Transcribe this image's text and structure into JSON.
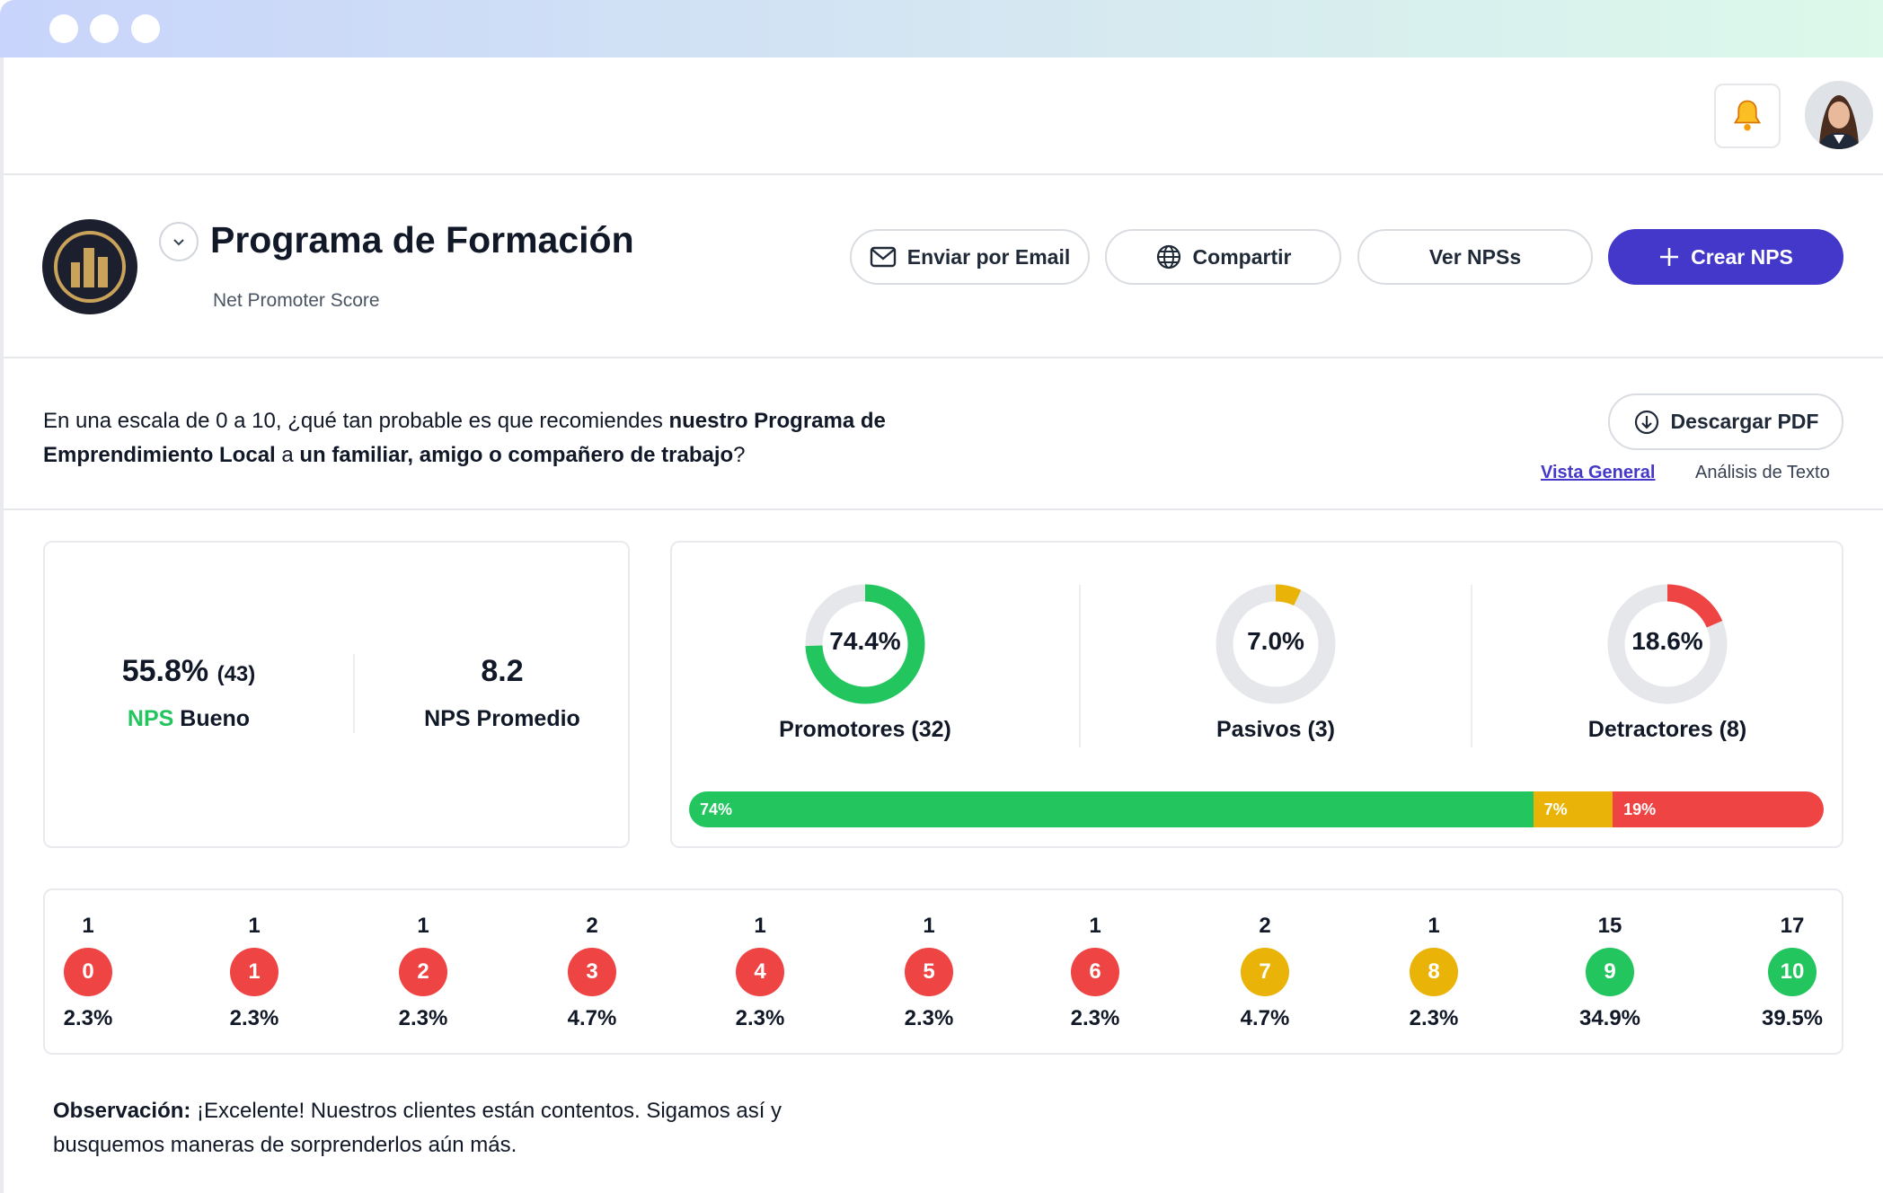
{
  "window": {
    "dots": 3
  },
  "header": {
    "bell_icon": "bell-icon",
    "avatar": "user-avatar"
  },
  "program": {
    "title": "Programa de Formación",
    "subtitle": "Net Promoter Score"
  },
  "actions": {
    "email": "Enviar por Email",
    "share": "Compartir",
    "view": "Ver NPSs",
    "create": "Crear NPS",
    "download": "Descargar PDF"
  },
  "question": {
    "p1": "En una escala de 0 a 10, ¿qué tan probable es que recomiendes ",
    "b1": "nuestro Programa de Emprendimiento Local",
    "p2": " a ",
    "b2": "un familiar, amigo o compañero de trabajo",
    "p3": "?"
  },
  "views": {
    "general": "Vista General",
    "text": "Análisis de Texto"
  },
  "summary": {
    "nps": "55.8%",
    "nps_count": "(43)",
    "nps_label_prefix": "NPS",
    "nps_label": "Bueno",
    "avg": "8.2",
    "avg_label": "NPS Promedio"
  },
  "colors": {
    "promoter": "#22c55e",
    "passive": "#eab308",
    "detractor": "#ef4444",
    "accent": "#4338ca",
    "track": "#e5e7eb"
  },
  "groups": [
    {
      "label": "Promotores (32)",
      "percent": "74.4%",
      "value": 74.4,
      "bar": "74%",
      "color": "#22c55e"
    },
    {
      "label": "Pasivos (3)",
      "percent": "7.0%",
      "value": 7.0,
      "bar": "7%",
      "color": "#eab308"
    },
    {
      "label": "Detractores (8)",
      "percent": "18.6%",
      "value": 18.6,
      "bar": "19%",
      "color": "#ef4444"
    }
  ],
  "scores": [
    {
      "score": "0",
      "count": "1",
      "pct": "2.3%",
      "color": "#ef4444"
    },
    {
      "score": "1",
      "count": "1",
      "pct": "2.3%",
      "color": "#ef4444"
    },
    {
      "score": "2",
      "count": "1",
      "pct": "2.3%",
      "color": "#ef4444"
    },
    {
      "score": "3",
      "count": "2",
      "pct": "4.7%",
      "color": "#ef4444"
    },
    {
      "score": "4",
      "count": "1",
      "pct": "2.3%",
      "color": "#ef4444"
    },
    {
      "score": "5",
      "count": "1",
      "pct": "2.3%",
      "color": "#ef4444"
    },
    {
      "score": "6",
      "count": "1",
      "pct": "2.3%",
      "color": "#ef4444"
    },
    {
      "score": "7",
      "count": "2",
      "pct": "4.7%",
      "color": "#eab308"
    },
    {
      "score": "8",
      "count": "1",
      "pct": "2.3%",
      "color": "#eab308"
    },
    {
      "score": "9",
      "count": "15",
      "pct": "34.9%",
      "color": "#22c55e"
    },
    {
      "score": "10",
      "count": "17",
      "pct": "39.5%",
      "color": "#22c55e"
    }
  ],
  "observation": {
    "label": "Observación:",
    "text": " ¡Excelente! Nuestros clientes están contentos. Sigamos así y busquemos maneras de sorprenderlos aún más."
  }
}
